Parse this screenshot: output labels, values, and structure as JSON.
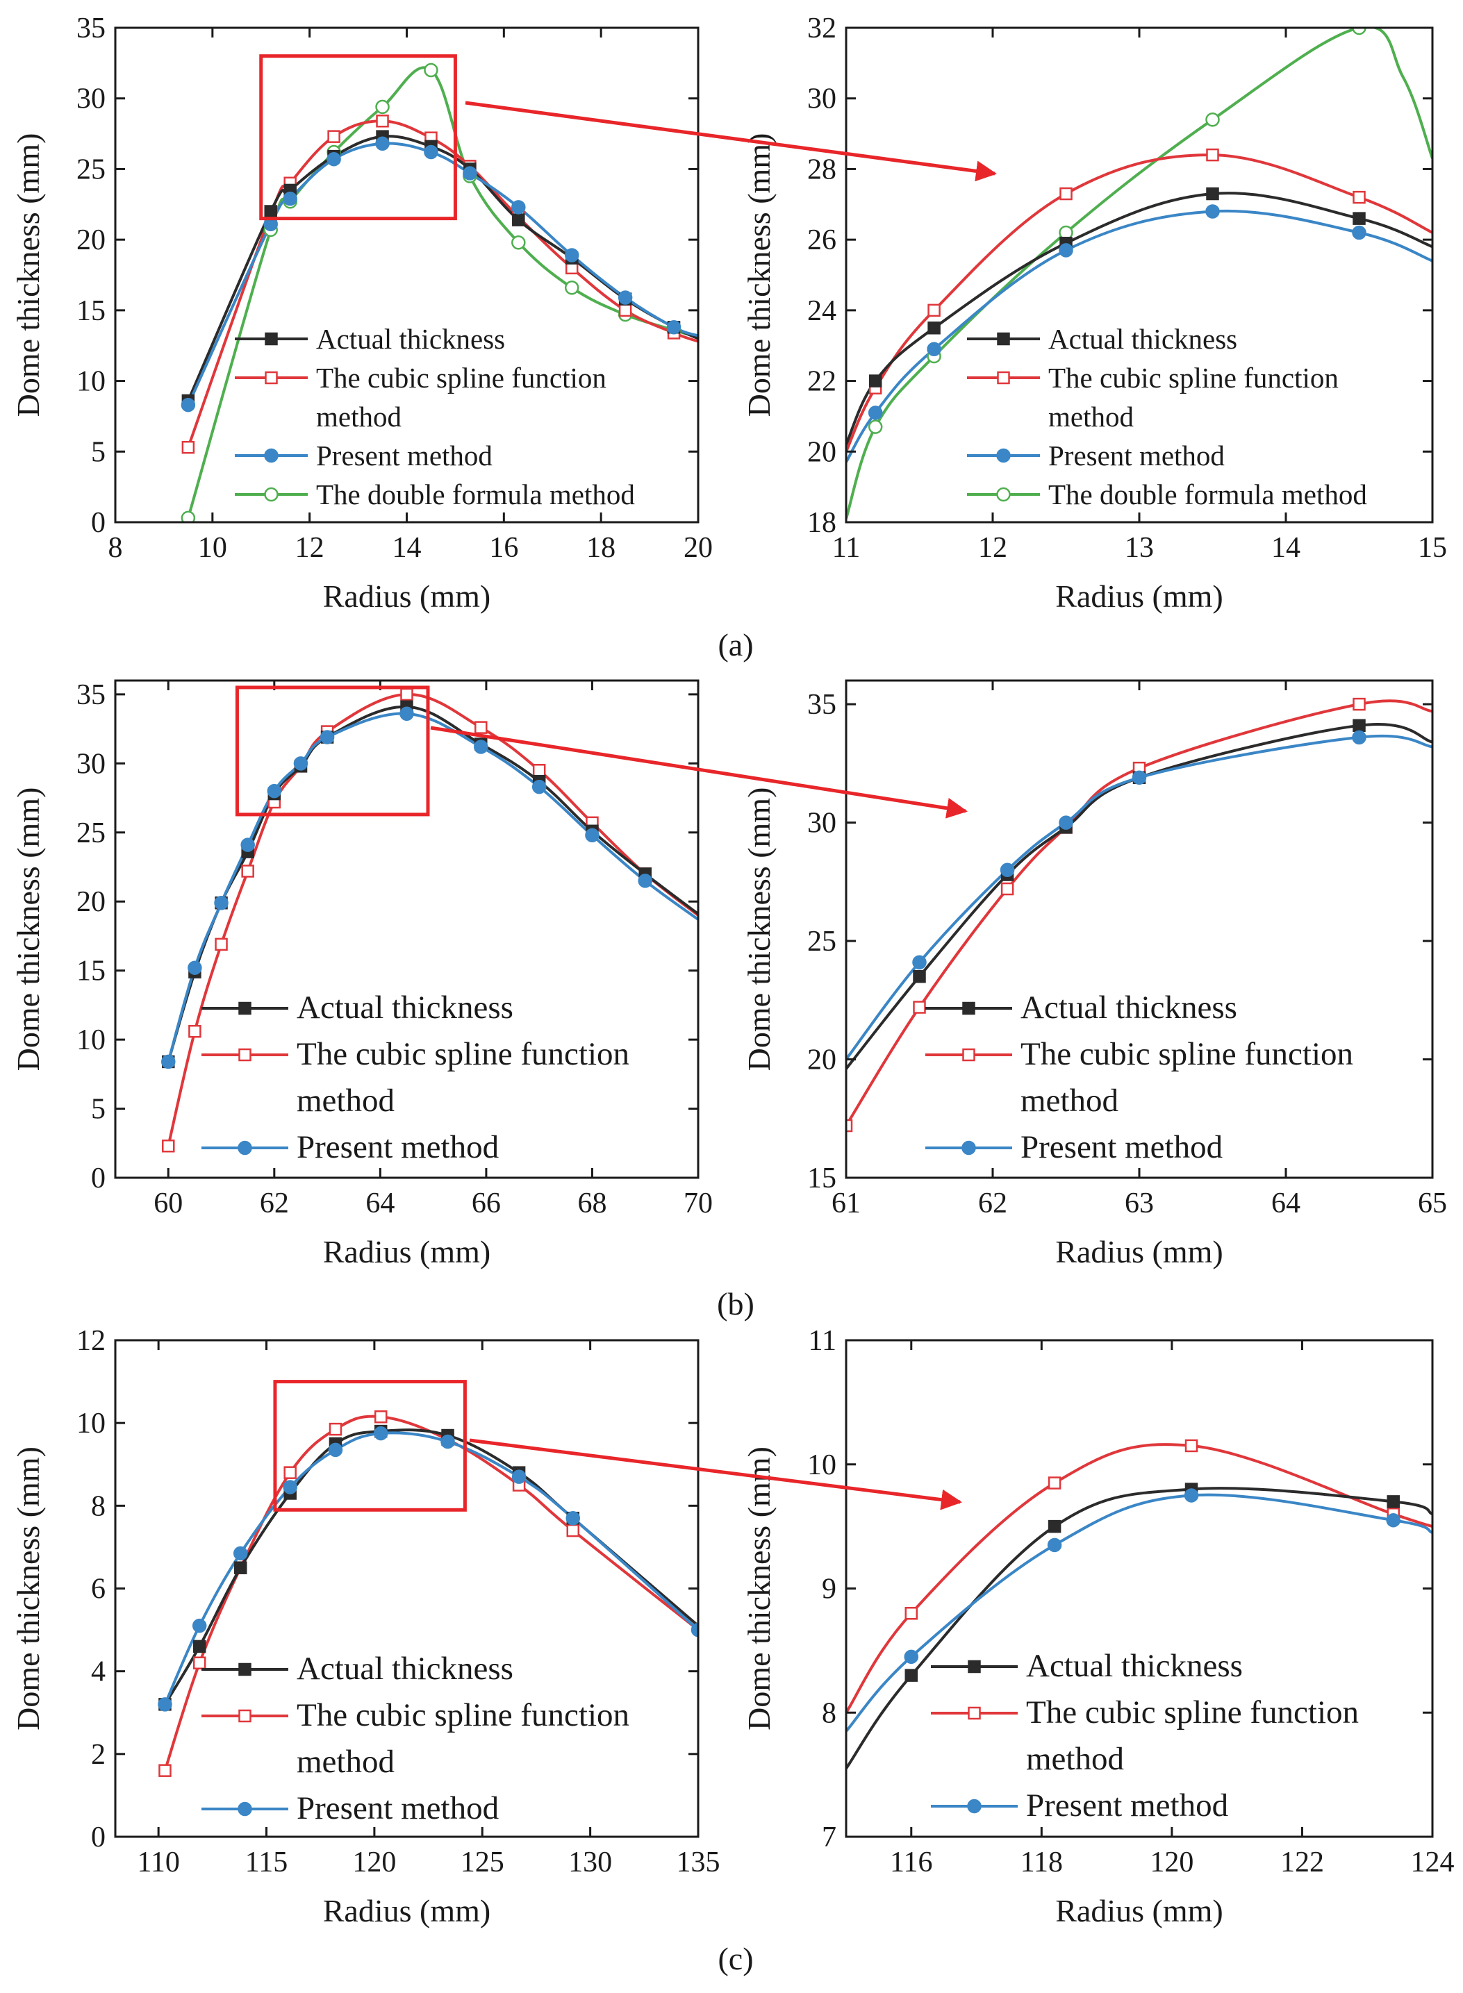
{
  "figure": {
    "panel_labels": [
      "(a)",
      "(b)",
      "(c)"
    ]
  },
  "colors": {
    "actual": "#2b2b2b",
    "cubic": "#e0373b",
    "present": "#3a86c6",
    "double": "#4faf4f",
    "zoom_box": "#e8262a",
    "axis": "#1a1a1a"
  },
  "chart_data": [
    {
      "id": "a-left",
      "type": "line",
      "xlabel": "Radius (mm)",
      "ylabel": "Dome thickness (mm)",
      "xlim": [
        8,
        20
      ],
      "ylim": [
        0,
        35
      ],
      "xticks": [
        8,
        10,
        12,
        14,
        16,
        18,
        20
      ],
      "yticks": [
        0,
        5,
        10,
        15,
        20,
        25,
        30,
        35
      ],
      "zoom_box": {
        "x": [
          11,
          15
        ],
        "y": [
          21.5,
          33
        ]
      },
      "series": [
        {
          "key": "double",
          "name": "The double formula method",
          "marker": "circle-open",
          "x": [
            9.5,
            11.2,
            11.6,
            12.5,
            13.5,
            14.5,
            15.3,
            16.3,
            17.4,
            18.5,
            19.5,
            20
          ],
          "y": [
            0.3,
            20.7,
            22.7,
            26.2,
            29.4,
            32.0,
            24.5,
            19.8,
            16.6,
            14.7,
            13.6,
            13.1
          ],
          "mx": [
            9.5,
            11.2,
            11.6,
            12.5,
            13.5,
            14.5,
            15.3,
            16.3,
            17.4,
            18.5,
            19.5
          ]
        },
        {
          "key": "cubic",
          "name": "The cubic spline function method",
          "marker": "square-open",
          "x": [
            9.5,
            11.2,
            11.6,
            12.5,
            13.5,
            14.5,
            15.3,
            16.3,
            17.4,
            18.5,
            19.5,
            20
          ],
          "y": [
            5.3,
            21.8,
            24.0,
            27.3,
            28.4,
            27.2,
            25.2,
            21.6,
            18.0,
            15.0,
            13.4,
            12.8
          ],
          "mx": [
            9.5,
            11.2,
            11.6,
            12.5,
            13.5,
            14.5,
            15.3,
            16.3,
            17.4,
            18.5,
            19.5
          ]
        },
        {
          "key": "actual",
          "name": "Actual thickness",
          "marker": "square",
          "x": [
            9.5,
            11.2,
            11.6,
            12.5,
            13.5,
            14.5,
            15.3,
            16.3,
            17.4,
            18.5,
            19.5,
            20
          ],
          "y": [
            8.6,
            22.0,
            23.5,
            25.9,
            27.3,
            26.6,
            25.0,
            21.4,
            18.7,
            15.8,
            13.8,
            13.0
          ],
          "mx": [
            9.5,
            11.2,
            11.6,
            12.5,
            13.5,
            14.5,
            15.3,
            16.3,
            17.4,
            18.5,
            19.5
          ]
        },
        {
          "key": "present",
          "name": "Present method",
          "marker": "circle",
          "x": [
            9.5,
            11.2,
            11.6,
            12.5,
            13.5,
            14.5,
            15.3,
            16.3,
            17.4,
            18.5,
            19.5,
            20
          ],
          "y": [
            8.3,
            21.1,
            22.9,
            25.7,
            26.8,
            26.2,
            24.7,
            22.3,
            18.9,
            15.9,
            13.8,
            13.2
          ],
          "mx": [
            9.5,
            11.2,
            11.6,
            12.5,
            13.5,
            14.5,
            15.3,
            16.3,
            17.4,
            18.5,
            19.5
          ]
        }
      ],
      "legend": {
        "order": [
          "actual",
          "cubic",
          "present",
          "double"
        ],
        "lines": [
          [
            "Actual thickness"
          ],
          [
            "The cubic spline function",
            "method"
          ],
          [
            "Present method"
          ],
          [
            "The double formula method"
          ]
        ]
      }
    },
    {
      "id": "a-right",
      "type": "line",
      "xlabel": "Radius (mm)",
      "ylabel": "Dome thickness (mm)",
      "xlim": [
        11,
        15
      ],
      "ylim": [
        18,
        32
      ],
      "xticks": [
        11,
        12,
        13,
        14,
        15
      ],
      "yticks": [
        18,
        20,
        22,
        24,
        26,
        28,
        30,
        32
      ],
      "series": [
        {
          "key": "double",
          "name": "The double formula method",
          "marker": "circle-open",
          "x": [
            11.0,
            11.2,
            11.6,
            12.5,
            13.5,
            14.5,
            14.8,
            15.0
          ],
          "y": [
            18.1,
            20.7,
            22.7,
            26.2,
            29.4,
            32.0,
            30.6,
            28.3
          ],
          "mx": [
            11.2,
            11.6,
            12.5,
            13.5,
            14.5
          ]
        },
        {
          "key": "cubic",
          "name": "The cubic spline function method",
          "marker": "square-open",
          "x": [
            11.0,
            11.2,
            11.6,
            12.5,
            13.5,
            14.5,
            15.0
          ],
          "y": [
            20.0,
            21.8,
            24.0,
            27.3,
            28.4,
            27.2,
            26.2
          ],
          "mx": [
            11.2,
            11.6,
            12.5,
            13.5,
            14.5
          ]
        },
        {
          "key": "actual",
          "name": "Actual thickness",
          "marker": "square",
          "x": [
            11.0,
            11.2,
            11.6,
            12.5,
            13.5,
            14.5,
            15.0
          ],
          "y": [
            20.2,
            22.0,
            23.5,
            25.9,
            27.3,
            26.6,
            25.8
          ],
          "mx": [
            11.2,
            11.6,
            12.5,
            13.5,
            14.5
          ]
        },
        {
          "key": "present",
          "name": "Present method",
          "marker": "circle",
          "x": [
            11.0,
            11.2,
            11.6,
            12.5,
            13.5,
            14.5,
            15.0
          ],
          "y": [
            19.7,
            21.1,
            22.9,
            25.7,
            26.8,
            26.2,
            25.4
          ],
          "mx": [
            11.2,
            11.6,
            12.5,
            13.5,
            14.5
          ]
        }
      ],
      "legend": {
        "order": [
          "actual",
          "cubic",
          "present",
          "double"
        ],
        "lines": [
          [
            "Actual thickness"
          ],
          [
            "The cubic spline function",
            "method"
          ],
          [
            "Present method"
          ],
          [
            "The double formula method"
          ]
        ]
      }
    },
    {
      "id": "b-left",
      "type": "line",
      "xlabel": "Radius (mm)",
      "ylabel": "Dome thickness (mm)",
      "xlim": [
        59,
        70
      ],
      "ylim": [
        0,
        36
      ],
      "xticks": [
        60,
        62,
        64,
        66,
        68,
        70
      ],
      "yticks": [
        0,
        5,
        10,
        15,
        20,
        25,
        30,
        35
      ],
      "zoom_box": {
        "x": [
          61.3,
          64.9
        ],
        "y": [
          26.3,
          35.5
        ]
      },
      "series": [
        {
          "key": "cubic",
          "name": "The cubic spline function method",
          "marker": "square-open",
          "x": [
            60,
            60.5,
            61,
            61.5,
            62,
            62.5,
            63,
            64.5,
            65.9,
            67,
            68,
            69,
            70
          ],
          "y": [
            2.3,
            10.6,
            16.9,
            22.2,
            27.2,
            29.8,
            32.3,
            35.0,
            32.6,
            29.5,
            25.7,
            22.0,
            19.0
          ],
          "mx": [
            60,
            60.5,
            61,
            61.5,
            62,
            62.5,
            63,
            64.5,
            65.9,
            67,
            68,
            69
          ]
        },
        {
          "key": "actual",
          "name": "Actual thickness",
          "marker": "square",
          "x": [
            60,
            60.5,
            61,
            61.5,
            62,
            62.5,
            63,
            64.5,
            65.9,
            67,
            68,
            69,
            70
          ],
          "y": [
            8.4,
            14.9,
            19.9,
            23.6,
            27.8,
            29.8,
            31.9,
            34.1,
            31.4,
            28.7,
            25.1,
            22.0,
            19.1
          ],
          "mx": [
            60,
            60.5,
            61,
            61.5,
            62,
            62.5,
            63,
            64.5,
            65.9,
            67,
            68,
            69
          ]
        },
        {
          "key": "present",
          "name": "Present method",
          "marker": "circle",
          "x": [
            60,
            60.5,
            61,
            61.5,
            62,
            62.5,
            63,
            64.5,
            65.9,
            67,
            68,
            69,
            70
          ],
          "y": [
            8.4,
            15.2,
            19.9,
            24.1,
            28.0,
            30.0,
            31.9,
            33.6,
            31.2,
            28.3,
            24.8,
            21.5,
            18.7
          ],
          "mx": [
            60,
            60.5,
            61,
            61.5,
            62,
            62.5,
            63,
            64.5,
            65.9,
            67,
            68,
            69
          ]
        }
      ],
      "legend": {
        "order": [
          "actual",
          "cubic",
          "present"
        ],
        "lines": [
          [
            "Actual thickness"
          ],
          [
            "The cubic spline function",
            "method"
          ],
          [
            "Present method"
          ]
        ]
      }
    },
    {
      "id": "b-right",
      "type": "line",
      "xlabel": "Radius (mm)",
      "ylabel": "Dome thickness (mm)",
      "xlim": [
        61,
        65
      ],
      "ylim": [
        15,
        36
      ],
      "xticks": [
        61,
        62,
        63,
        64,
        65
      ],
      "yticks": [
        15,
        20,
        25,
        30,
        35
      ],
      "series": [
        {
          "key": "cubic",
          "name": "The cubic spline function method",
          "marker": "square-open",
          "x": [
            61.0,
            61.5,
            62.1,
            62.5,
            63.0,
            64.5,
            65.0
          ],
          "y": [
            17.2,
            22.2,
            27.2,
            29.8,
            32.3,
            35.0,
            34.7
          ],
          "mx": [
            61.0,
            61.5,
            62.1,
            62.5,
            63.0,
            64.5
          ]
        },
        {
          "key": "actual",
          "name": "Actual thickness",
          "marker": "square",
          "x": [
            61.0,
            61.5,
            62.1,
            62.5,
            63.0,
            64.5,
            65.0
          ],
          "y": [
            19.6,
            23.5,
            27.8,
            29.8,
            31.9,
            34.1,
            33.4
          ],
          "mx": [
            61.5,
            62.1,
            62.5,
            63.0,
            64.5
          ]
        },
        {
          "key": "present",
          "name": "Present method",
          "marker": "circle",
          "x": [
            61.0,
            61.5,
            62.1,
            62.5,
            63.0,
            64.5,
            65.0
          ],
          "y": [
            20.0,
            24.1,
            28.0,
            30.0,
            31.9,
            33.6,
            33.2
          ],
          "mx": [
            61.5,
            62.1,
            62.5,
            63.0,
            64.5
          ]
        }
      ],
      "legend": {
        "order": [
          "actual",
          "cubic",
          "present"
        ],
        "lines": [
          [
            "Actual thickness"
          ],
          [
            "The cubic spline function",
            "method"
          ],
          [
            "Present method"
          ]
        ]
      }
    },
    {
      "id": "c-left",
      "type": "line",
      "xlabel": "Radius (mm)",
      "ylabel": "Dome thickness (mm)",
      "xlim": [
        108,
        135
      ],
      "ylim": [
        0,
        12
      ],
      "xticks": [
        110,
        115,
        120,
        125,
        130,
        135
      ],
      "yticks": [
        0,
        2,
        4,
        6,
        8,
        10,
        12
      ],
      "zoom_box": {
        "x": [
          115.4,
          124.2
        ],
        "y": [
          7.9,
          11
        ]
      },
      "series": [
        {
          "key": "cubic",
          "name": "The cubic spline function method",
          "marker": "square-open",
          "x": [
            110.3,
            111.9,
            113.8,
            116.1,
            118.2,
            120.3,
            123.4,
            126.7,
            129.2,
            135
          ],
          "y": [
            1.6,
            4.2,
            6.5,
            8.8,
            9.85,
            10.15,
            9.6,
            8.5,
            7.4,
            5.0
          ],
          "mx": [
            110.3,
            111.9,
            113.8,
            116.1,
            118.2,
            120.3,
            123.4,
            126.7,
            129.2
          ]
        },
        {
          "key": "actual",
          "name": "Actual thickness",
          "marker": "square",
          "x": [
            110.3,
            111.9,
            113.8,
            116.1,
            118.2,
            120.3,
            123.4,
            126.7,
            129.2,
            135
          ],
          "y": [
            3.2,
            4.6,
            6.5,
            8.3,
            9.5,
            9.8,
            9.7,
            8.8,
            7.7,
            5.1
          ],
          "mx": [
            110.3,
            111.9,
            113.8,
            116.1,
            118.2,
            120.3,
            123.4,
            126.7,
            129.2
          ]
        },
        {
          "key": "present",
          "name": "Present method",
          "marker": "circle",
          "x": [
            110.3,
            111.9,
            113.8,
            116.1,
            118.2,
            120.3,
            123.4,
            126.7,
            129.2,
            135
          ],
          "y": [
            3.2,
            5.1,
            6.85,
            8.45,
            9.35,
            9.75,
            9.55,
            8.7,
            7.7,
            5.0
          ],
          "mx": [
            110.3,
            111.9,
            113.8,
            116.1,
            118.2,
            120.3,
            123.4,
            126.7,
            129.2,
            135
          ]
        }
      ],
      "legend": {
        "order": [
          "actual",
          "cubic",
          "present"
        ],
        "lines": [
          [
            "Actual thickness"
          ],
          [
            "The cubic spline function",
            "method"
          ],
          [
            "Present method"
          ]
        ]
      }
    },
    {
      "id": "c-right",
      "type": "line",
      "xlabel": "Radius (mm)",
      "ylabel": "Dome thickness (mm)",
      "xlim": [
        115,
        124
      ],
      "ylim": [
        7,
        11
      ],
      "xticks": [
        116,
        118,
        120,
        122,
        124
      ],
      "yticks": [
        7,
        8,
        9,
        10,
        11
      ],
      "series": [
        {
          "key": "cubic",
          "name": "The cubic spline function method",
          "marker": "square-open",
          "x": [
            115.0,
            116.0,
            118.2,
            120.3,
            123.4,
            124.0
          ],
          "y": [
            8.0,
            8.8,
            9.85,
            10.15,
            9.6,
            9.5
          ],
          "mx": [
            116.0,
            118.2,
            120.3,
            123.4
          ]
        },
        {
          "key": "actual",
          "name": "Actual thickness",
          "marker": "square",
          "x": [
            115.0,
            116.0,
            118.2,
            120.3,
            123.4,
            124.0
          ],
          "y": [
            7.55,
            8.3,
            9.5,
            9.8,
            9.7,
            9.6
          ],
          "mx": [
            116.0,
            118.2,
            120.3,
            123.4
          ]
        },
        {
          "key": "present",
          "name": "Present method",
          "marker": "circle",
          "x": [
            115.0,
            116.0,
            118.2,
            120.3,
            123.4,
            124.0
          ],
          "y": [
            7.85,
            8.45,
            9.35,
            9.75,
            9.55,
            9.45
          ],
          "mx": [
            116.0,
            118.2,
            120.3,
            123.4
          ]
        }
      ],
      "legend": {
        "order": [
          "actual",
          "cubic",
          "present"
        ],
        "lines": [
          [
            "Actual thickness"
          ],
          [
            "The cubic spline function",
            "method"
          ],
          [
            "Present method"
          ]
        ]
      }
    }
  ]
}
